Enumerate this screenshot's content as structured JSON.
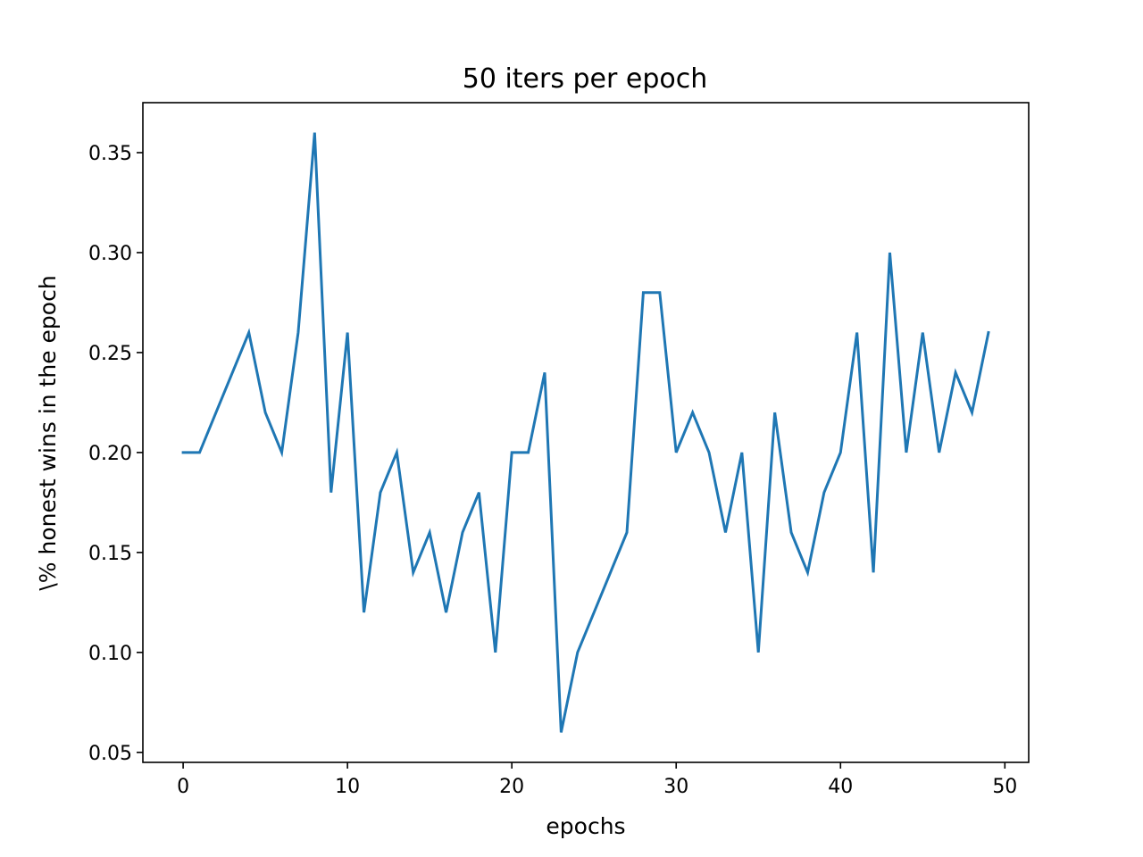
{
  "chart_data": {
    "type": "line",
    "title": "50 iters per epoch",
    "xlabel": "epochs",
    "ylabel": "\\% honest wins in the epoch",
    "xlim": [
      -2.45,
      51.45
    ],
    "ylim": [
      0.045,
      0.375
    ],
    "xticks": [
      0,
      10,
      20,
      30,
      40,
      50
    ],
    "xtick_labels": [
      "0",
      "10",
      "20",
      "30",
      "40",
      "50"
    ],
    "yticks": [
      0.05,
      0.1,
      0.15,
      0.2,
      0.25,
      0.3,
      0.35
    ],
    "ytick_labels": [
      "0.05",
      "0.10",
      "0.15",
      "0.20",
      "0.25",
      "0.30",
      "0.35"
    ],
    "grid": false,
    "legend": "none",
    "series": [
      {
        "color": "#1f77b4",
        "x": [
          0,
          1,
          2,
          3,
          4,
          5,
          6,
          7,
          8,
          9,
          10,
          11,
          12,
          13,
          14,
          15,
          16,
          17,
          18,
          19,
          20,
          21,
          22,
          23,
          24,
          25,
          26,
          27,
          28,
          29,
          30,
          31,
          32,
          33,
          34,
          35,
          36,
          37,
          38,
          39,
          40,
          41,
          42,
          43,
          44,
          45,
          46,
          47,
          48,
          49
        ],
        "y": [
          0.2,
          0.2,
          0.22,
          0.24,
          0.26,
          0.22,
          0.2,
          0.26,
          0.36,
          0.18,
          0.26,
          0.12,
          0.18,
          0.2,
          0.14,
          0.16,
          0.12,
          0.16,
          0.18,
          0.1,
          0.2,
          0.2,
          0.24,
          0.06,
          0.1,
          0.12,
          0.14,
          0.16,
          0.28,
          0.28,
          0.2,
          0.22,
          0.2,
          0.16,
          0.2,
          0.1,
          0.22,
          0.16,
          0.14,
          0.18,
          0.2,
          0.26,
          0.14,
          0.3,
          0.2,
          0.26,
          0.2,
          0.24,
          0.22,
          0.26
        ]
      }
    ]
  }
}
